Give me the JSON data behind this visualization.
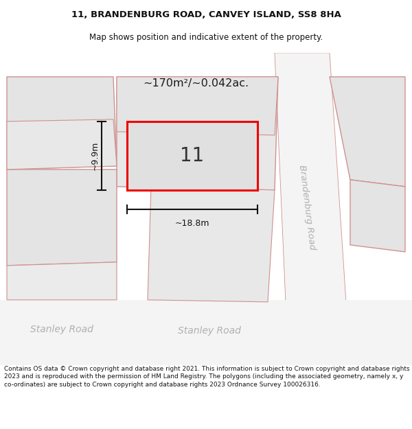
{
  "title_line1": "11, BRANDENBURG ROAD, CANVEY ISLAND, SS8 8HA",
  "title_line2": "Map shows position and indicative extent of the property.",
  "footer_text": "Contains OS data © Crown copyright and database right 2021. This information is subject to Crown copyright and database rights 2023 and is reproduced with the permission of HM Land Registry. The polygons (including the associated geometry, namely x, y co-ordinates) are subject to Crown copyright and database rights 2023 Ordnance Survey 100026316.",
  "property_number": "11",
  "area_label": "~170m²/~0.042ac.",
  "width_label": "~18.8m",
  "height_label": "~9.9m",
  "road_label": "Brandenburg Road",
  "stanley_road_left": "Stanley Road",
  "stanley_road_right": "Stanley Road",
  "title_fontsize": 9.5,
  "subtitle_fontsize": 8.5,
  "footer_fontsize": 6.5,
  "property_border": "#ee0000",
  "property_fill": "#e0e0e0",
  "parcel_fill": "#e4e4e4",
  "parcel_edge": "#d09090",
  "road_fill": "#f4f4f4",
  "map_bg": "#efefef",
  "dim_color": "#111111",
  "road_text_color": "#b0b0b0",
  "area_label_color": "#1a1a1a",
  "property_num_color": "#333333",
  "title_color": "#111111",
  "footer_color": "#111111"
}
